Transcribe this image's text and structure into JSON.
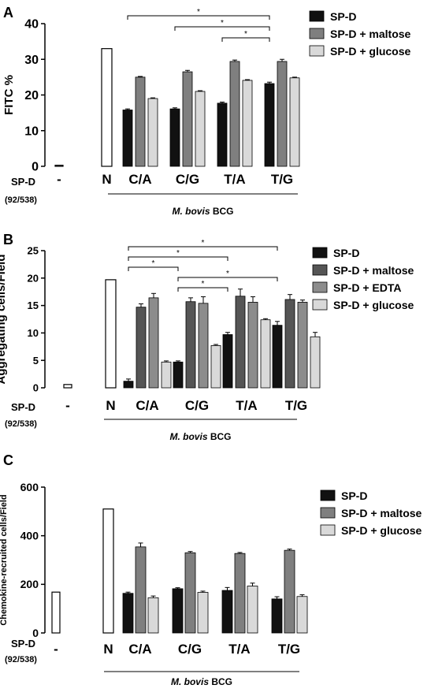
{
  "colors": {
    "sp_d": "#111111",
    "sp_d_maltose": "#7f7f7f",
    "sp_d_edta": "#9a9a9a",
    "sp_d_glucose": "#d9d9d9",
    "control": "#ffffff",
    "outline": "#000000"
  },
  "chart_data": [
    {
      "type": "bar",
      "panel_label": "A",
      "ylabel": "FITC %",
      "ylim": [
        0,
        40
      ],
      "yticks": [
        0,
        10,
        20,
        30,
        40
      ],
      "row_label": "SP-D",
      "row_sublabel": "(92/538)",
      "control_labels": [
        "-",
        "N"
      ],
      "controls": [
        {
          "label": "-",
          "value": 0.3
        },
        {
          "label": "N",
          "value": 33
        }
      ],
      "categories": [
        "C/A",
        "C/G",
        "T/A",
        "T/G"
      ],
      "series": [
        {
          "name": "SP-D",
          "color": "#111111",
          "values": [
            15.8,
            16.1,
            17.7,
            23.2
          ],
          "errors": [
            0.3,
            0.3,
            0.3,
            0.4
          ]
        },
        {
          "name": "SP-D + maltose",
          "color": "#7f7f7f",
          "values": [
            25.0,
            26.5,
            29.4,
            29.4
          ],
          "errors": [
            0.2,
            0.4,
            0.4,
            0.6
          ]
        },
        {
          "name": "SP-D + glucose",
          "color": "#d9d9d9",
          "values": [
            19.0,
            21.0,
            24.1,
            24.8
          ],
          "errors": [
            0.2,
            0.2,
            0.2,
            0.2
          ]
        }
      ],
      "group_label_italic": "M. bovis",
      "group_label_suffix": "BCG",
      "significance": [
        {
          "from": [
            0,
            0
          ],
          "to": [
            3,
            0
          ],
          "label": "*"
        },
        {
          "from": [
            1,
            0
          ],
          "to": [
            3,
            0
          ],
          "label": "*"
        },
        {
          "from": [
            2,
            0
          ],
          "to": [
            3,
            0
          ],
          "label": "*"
        }
      ]
    },
    {
      "type": "bar",
      "panel_label": "B",
      "ylabel": "Aggregating cells/Field",
      "ylim": [
        0,
        25
      ],
      "yticks": [
        0,
        5,
        10,
        15,
        20,
        25
      ],
      "row_label": "SP-D",
      "row_sublabel": "(92/538)",
      "control_labels": [
        "-",
        "N"
      ],
      "controls": [
        {
          "label": "-",
          "value": 0.6
        },
        {
          "label": "N",
          "value": 19.7
        }
      ],
      "categories": [
        "C/A",
        "C/G",
        "T/A",
        "T/G"
      ],
      "series": [
        {
          "name": "SP-D",
          "color": "#111111",
          "values": [
            1.2,
            4.7,
            9.7,
            11.4
          ],
          "errors": [
            0.4,
            0.2,
            0.4,
            0.7
          ]
        },
        {
          "name": "SP-D + maltose",
          "color": "#555555",
          "values": [
            14.7,
            15.7,
            16.7,
            16.1
          ],
          "errors": [
            0.6,
            0.7,
            1.3,
            0.9
          ]
        },
        {
          "name": "SP-D + EDTA",
          "color": "#8c8c8c",
          "values": [
            16.4,
            15.4,
            15.6,
            15.6
          ],
          "errors": [
            0.8,
            1.2,
            1.0,
            0.4
          ]
        },
        {
          "name": "SP-D + glucose",
          "color": "#d9d9d9",
          "values": [
            4.7,
            7.7,
            12.4,
            9.3
          ],
          "errors": [
            0.2,
            0.2,
            0.2,
            0.8
          ]
        }
      ],
      "group_label_italic": "M. bovis",
      "group_label_suffix": "BCG",
      "significance": [
        {
          "from": [
            0,
            0
          ],
          "to": [
            3,
            0
          ],
          "label": "*"
        },
        {
          "from": [
            0,
            0
          ],
          "to": [
            2,
            0
          ],
          "label": "*"
        },
        {
          "from": [
            0,
            0
          ],
          "to": [
            1,
            0
          ],
          "label": "*"
        },
        {
          "from": [
            1,
            0
          ],
          "to": [
            3,
            0
          ],
          "label": "*"
        },
        {
          "from": [
            1,
            0
          ],
          "to": [
            2,
            0
          ],
          "label": "*"
        }
      ]
    },
    {
      "type": "bar",
      "panel_label": "C",
      "ylabel": "Chemokine-recruited cells/Field",
      "ylim": [
        0,
        600
      ],
      "yticks": [
        0,
        200,
        400,
        600
      ],
      "row_label": "SP-D",
      "row_sublabel": "(92/538)",
      "control_labels": [
        "-",
        "N"
      ],
      "controls": [
        {
          "label": "-",
          "value": 168
        },
        {
          "label": "N",
          "value": 510
        }
      ],
      "categories": [
        "C/A",
        "C/G",
        "T/A",
        "T/G"
      ],
      "series": [
        {
          "name": "SP-D",
          "color": "#111111",
          "values": [
            163,
            182,
            175,
            140
          ],
          "errors": [
            5,
            4,
            12,
            9
          ]
        },
        {
          "name": "SP-D + maltose",
          "color": "#7f7f7f",
          "values": [
            354,
            330,
            327,
            340
          ],
          "errors": [
            16,
            5,
            4,
            5
          ]
        },
        {
          "name": "SP-D + glucose",
          "color": "#d9d9d9",
          "values": [
            145,
            167,
            193,
            150
          ],
          "errors": [
            7,
            5,
            12,
            7
          ]
        }
      ],
      "group_label_italic": "M. bovis",
      "group_label_suffix": "BCG",
      "significance": []
    }
  ]
}
